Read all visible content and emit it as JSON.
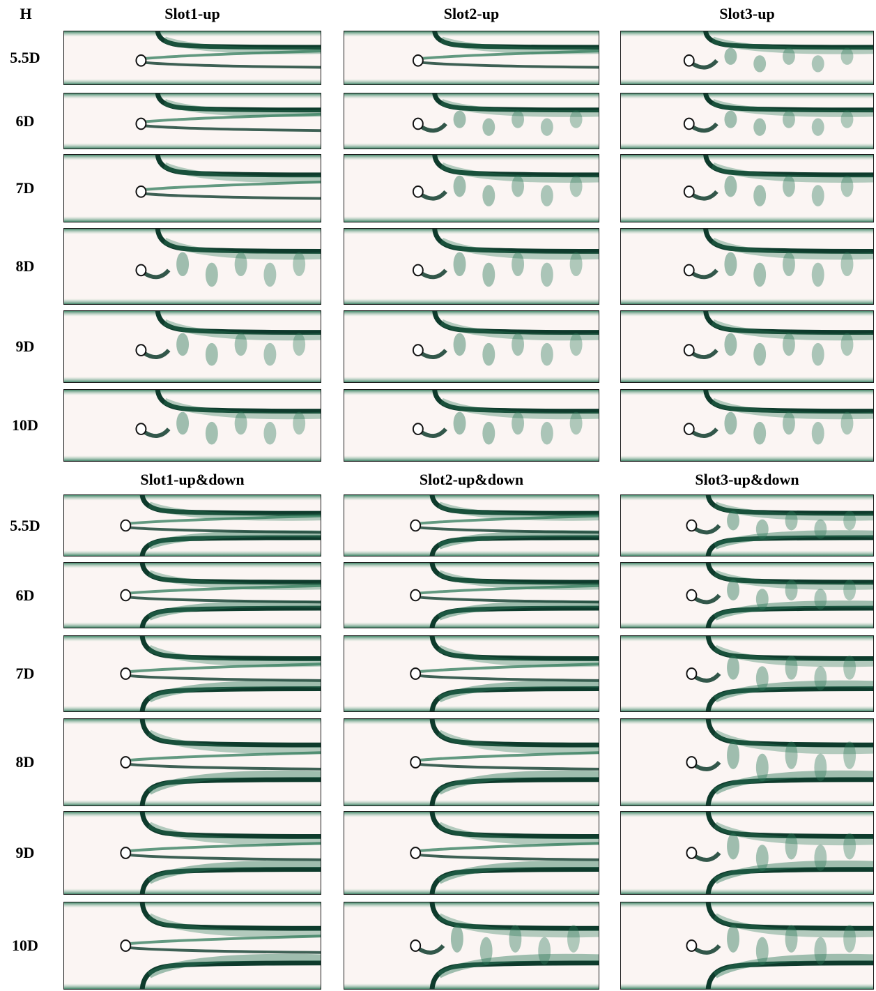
{
  "header_label": "H",
  "top_section": {
    "column_titles": [
      "Slot1-up",
      "Slot2-up",
      "Slot3-up"
    ],
    "row_labels": [
      "5.5D",
      "6D",
      "7D",
      "8D",
      "9D",
      "10D"
    ],
    "rows": [
      [
        "steady-upper",
        "steady-upper",
        "shedding"
      ],
      [
        "steady-upper",
        "shedding",
        "shedding"
      ],
      [
        "steady-upper",
        "shedding",
        "shedding"
      ],
      [
        "shedding",
        "shedding",
        "shedding"
      ],
      [
        "shedding",
        "shedding",
        "shedding"
      ],
      [
        "shedding",
        "shedding",
        "shedding"
      ]
    ]
  },
  "bottom_section": {
    "column_titles": [
      "Slot1-up&down",
      "Slot2-up&down",
      "Slot3-up&down"
    ],
    "row_labels": [
      "5.5D",
      "6D",
      "7D",
      "8D",
      "9D",
      "10D"
    ],
    "rows": [
      [
        "steady-both",
        "steady-both",
        "shedding-both"
      ],
      [
        "steady-both",
        "steady-both",
        "shedding-both"
      ],
      [
        "steady-both",
        "steady-both",
        "shedding-both"
      ],
      [
        "steady-both",
        "steady-both",
        "shedding-both"
      ],
      [
        "steady-both",
        "steady-both",
        "shedding-both"
      ],
      [
        "steady-both",
        "shedding-both",
        "shedding-both"
      ]
    ]
  },
  "colors": {
    "background": "#fbf5f3",
    "vorticity_dark": "#0e3b2c",
    "vorticity_mid": "#2f7a5a",
    "vorticity_light": "#9cc6b0"
  }
}
